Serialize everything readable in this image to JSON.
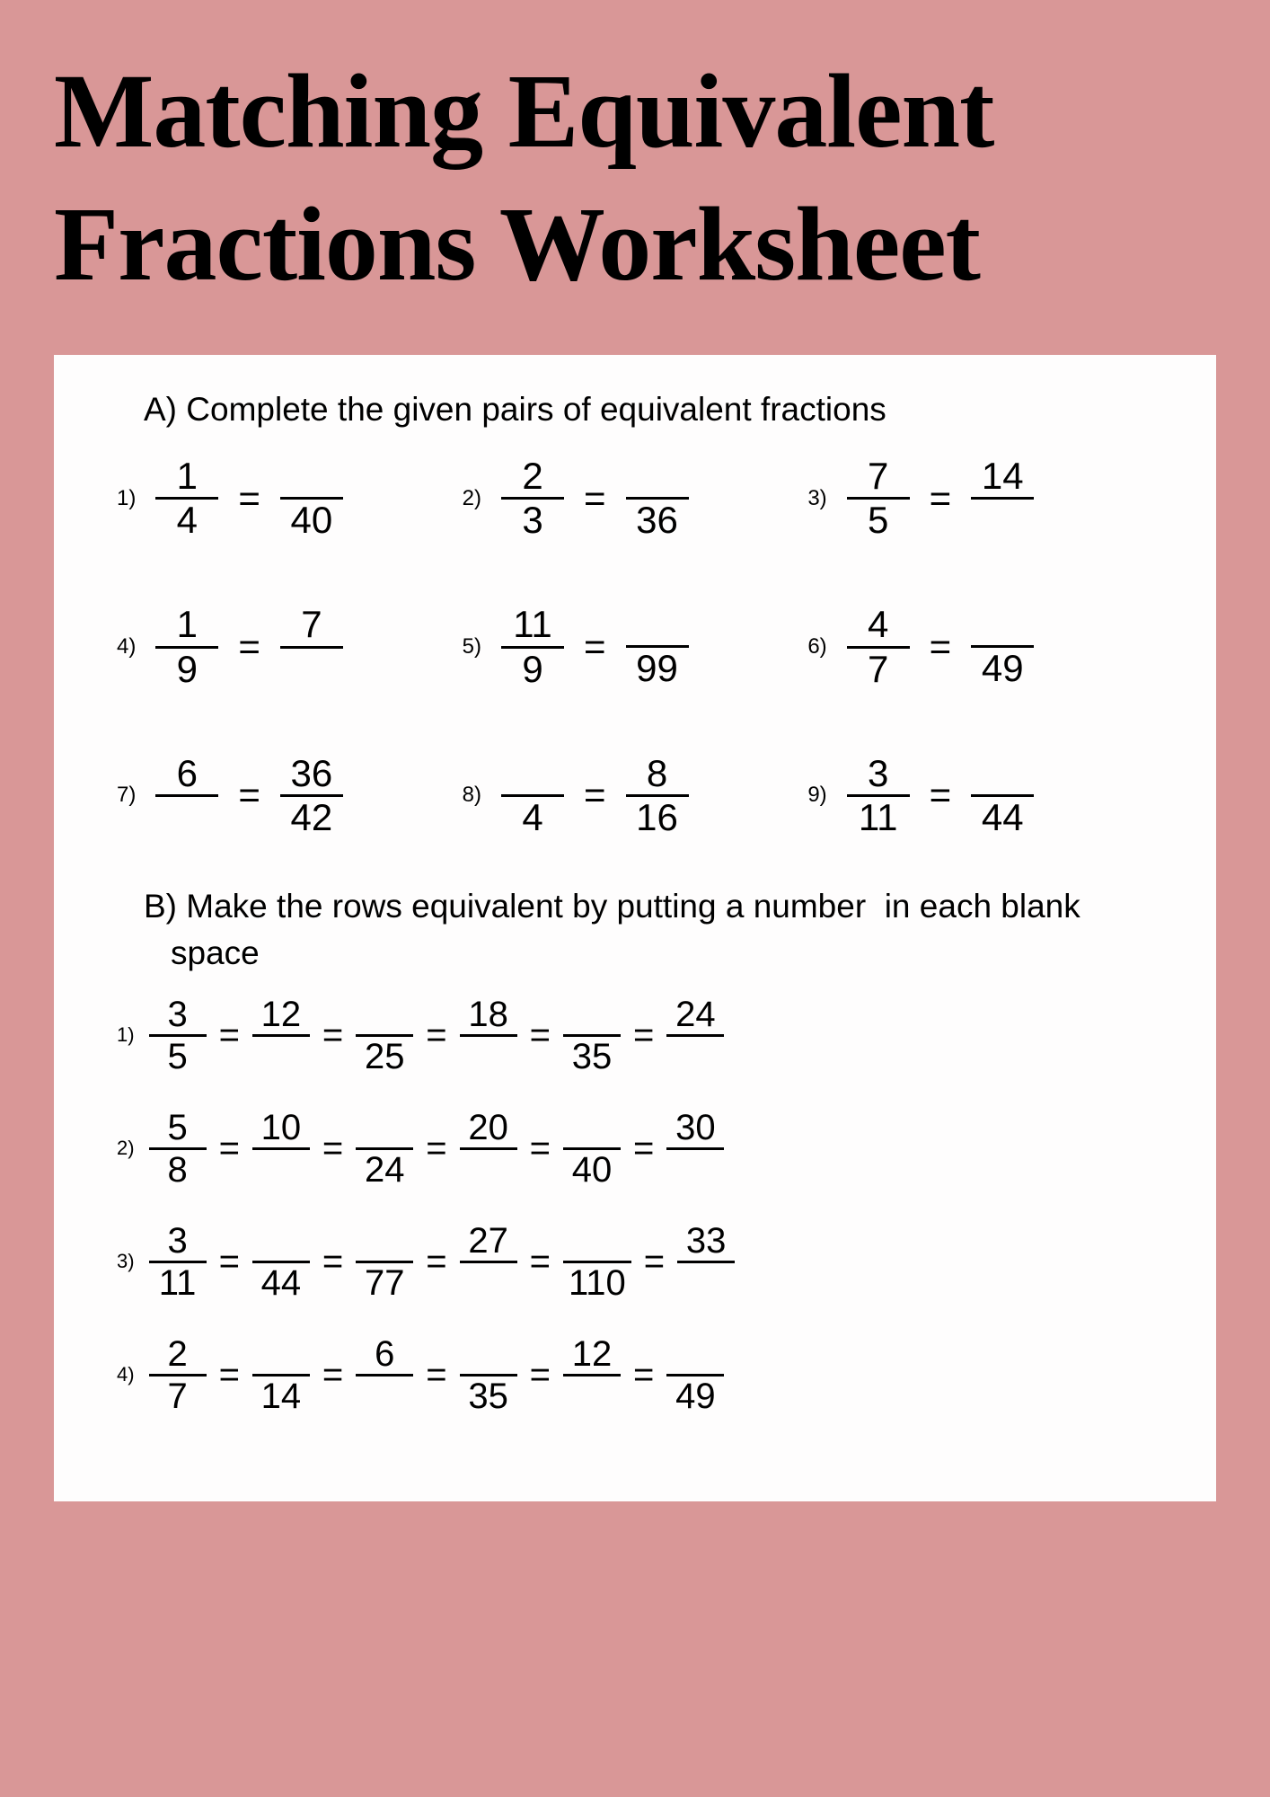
{
  "title_line1": "Matching Equivalent",
  "title_line2": "Fractions Worksheet",
  "colors": {
    "page_bg": "#d99797",
    "sheet_bg": "#fefdfd",
    "text": "#000000"
  },
  "sectionA": {
    "instruction": "A) Complete the given pairs of equivalent fractions",
    "problems": [
      {
        "num": "1)",
        "f1n": "1",
        "f1d": "4",
        "f2n": "",
        "f2d": "40"
      },
      {
        "num": "2)",
        "f1n": "2",
        "f1d": "3",
        "f2n": "",
        "f2d": "36"
      },
      {
        "num": "3)",
        "f1n": "7",
        "f1d": "5",
        "f2n": "14",
        "f2d": ""
      },
      {
        "num": "4)",
        "f1n": "1",
        "f1d": "9",
        "f2n": "7",
        "f2d": ""
      },
      {
        "num": "5)",
        "f1n": "11",
        "f1d": "9",
        "f2n": "",
        "f2d": "99"
      },
      {
        "num": "6)",
        "f1n": "4",
        "f1d": "7",
        "f2n": "",
        "f2d": "49"
      },
      {
        "num": "7)",
        "f1n": "6",
        "f1d": "",
        "f2n": "36",
        "f2d": "42"
      },
      {
        "num": "8)",
        "f1n": "",
        "f1d": "4",
        "f2n": "8",
        "f2d": "16"
      },
      {
        "num": "9)",
        "f1n": "3",
        "f1d": "11",
        "f2n": "",
        "f2d": "44"
      }
    ]
  },
  "sectionB": {
    "instruction": "B) Make the rows equivalent by putting a number  in each blank space",
    "problems": [
      {
        "num": "1)",
        "fracs": [
          {
            "n": "3",
            "d": "5"
          },
          {
            "n": "12",
            "d": ""
          },
          {
            "n": "",
            "d": "25"
          },
          {
            "n": "18",
            "d": ""
          },
          {
            "n": "",
            "d": "35"
          },
          {
            "n": "24",
            "d": ""
          }
        ]
      },
      {
        "num": "2)",
        "fracs": [
          {
            "n": "5",
            "d": "8"
          },
          {
            "n": "10",
            "d": ""
          },
          {
            "n": "",
            "d": "24"
          },
          {
            "n": "20",
            "d": ""
          },
          {
            "n": "",
            "d": "40"
          },
          {
            "n": "30",
            "d": ""
          }
        ]
      },
      {
        "num": "3)",
        "fracs": [
          {
            "n": "3",
            "d": "11"
          },
          {
            "n": "",
            "d": "44"
          },
          {
            "n": "",
            "d": "77"
          },
          {
            "n": "27",
            "d": ""
          },
          {
            "n": "",
            "d": "110"
          },
          {
            "n": "33",
            "d": ""
          }
        ]
      },
      {
        "num": "4)",
        "fracs": [
          {
            "n": "2",
            "d": "7"
          },
          {
            "n": "",
            "d": "14"
          },
          {
            "n": "6",
            "d": ""
          },
          {
            "n": "",
            "d": "35"
          },
          {
            "n": "12",
            "d": ""
          },
          {
            "n": "",
            "d": "49"
          }
        ]
      }
    ]
  },
  "equals": "="
}
